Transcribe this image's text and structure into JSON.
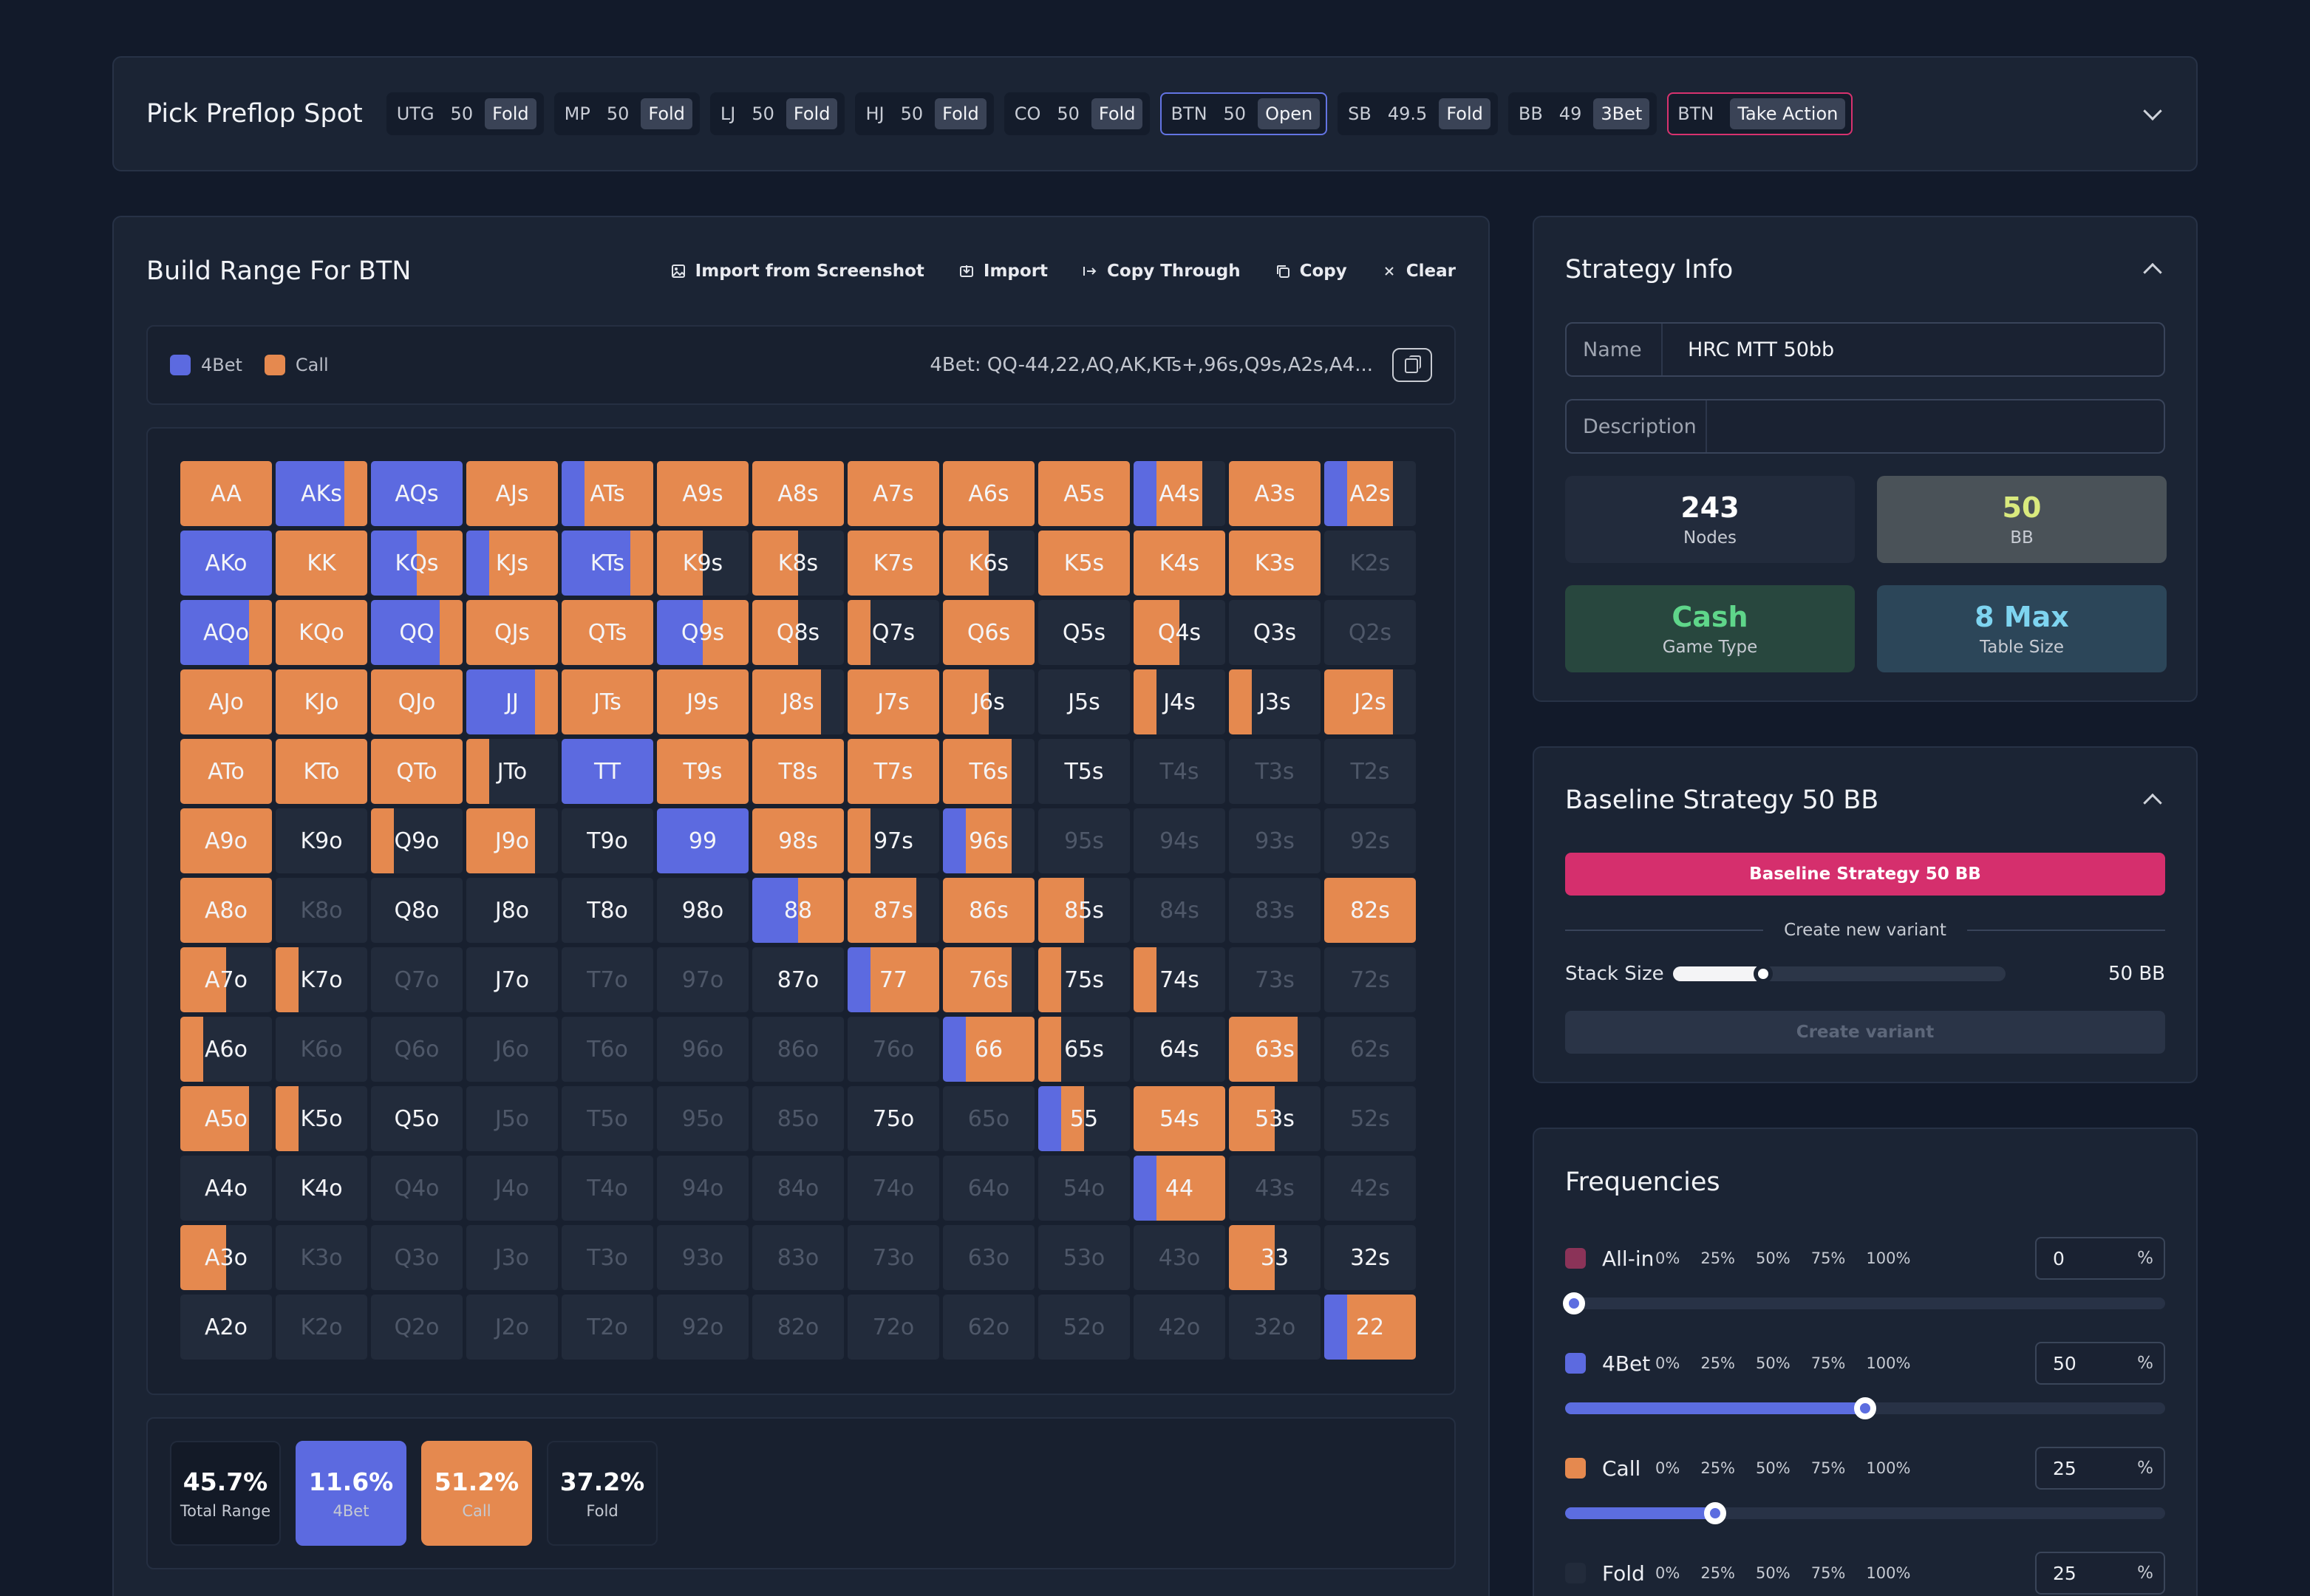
{
  "colors": {
    "fourbet": "#5c6ae0",
    "call": "#e5894f",
    "allin": "#8b3358",
    "fold": "#222b3b",
    "accent": "#d52f6d"
  },
  "spot": {
    "title": "Pick Preflop Spot",
    "chips": [
      {
        "pos": "UTG",
        "stack": "50",
        "action": "Fold"
      },
      {
        "pos": "MP",
        "stack": "50",
        "action": "Fold"
      },
      {
        "pos": "LJ",
        "stack": "50",
        "action": "Fold"
      },
      {
        "pos": "HJ",
        "stack": "50",
        "action": "Fold"
      },
      {
        "pos": "CO",
        "stack": "50",
        "action": "Fold"
      },
      {
        "pos": "BTN",
        "stack": "50",
        "action": "Open",
        "state": "current"
      },
      {
        "pos": "SB",
        "stack": "49.5",
        "action": "Fold"
      },
      {
        "pos": "BB",
        "stack": "49",
        "action": "3Bet"
      },
      {
        "pos": "BTN",
        "stack": "",
        "action": "Take Action",
        "state": "take"
      }
    ]
  },
  "range": {
    "title": "Build Range For BTN",
    "actions": [
      {
        "label": "Import from Screenshot",
        "icon": "image-icon"
      },
      {
        "label": "Import",
        "icon": "import-icon"
      },
      {
        "label": "Copy Through",
        "icon": "arrow-right-icon"
      },
      {
        "label": "Copy",
        "icon": "copy-icon"
      },
      {
        "label": "Clear",
        "icon": "close-icon"
      }
    ],
    "legend": [
      {
        "label": "4Bet",
        "color": "#5c6ae0"
      },
      {
        "label": "Call",
        "color": "#e5894f"
      }
    ],
    "range_string": "4Bet: QQ-44,22,AQ,AK,KTs+,96s,Q9s,A2s,A4...",
    "cells": [
      [
        "AA",
        0,
        1
      ],
      [
        "AKs",
        0.75,
        0.25
      ],
      [
        "AQs",
        1,
        0
      ],
      [
        "AJs",
        0,
        1
      ],
      [
        "ATs",
        0.25,
        0.75
      ],
      [
        "A9s",
        0,
        1
      ],
      [
        "A8s",
        0,
        1
      ],
      [
        "A7s",
        0,
        1
      ],
      [
        "A6s",
        0,
        1
      ],
      [
        "A5s",
        0,
        1
      ],
      [
        "A4s",
        0.25,
        0.5
      ],
      [
        "A3s",
        0,
        1
      ],
      [
        "A2s",
        0.25,
        0.5
      ],
      [
        "AKo",
        1,
        0
      ],
      [
        "KK",
        0,
        1
      ],
      [
        "KQs",
        0.5,
        0.5
      ],
      [
        "KJs",
        0.25,
        0.75
      ],
      [
        "KTs",
        0.75,
        0.25
      ],
      [
        "K9s",
        0,
        0.5
      ],
      [
        "K8s",
        0,
        0.5
      ],
      [
        "K7s",
        0,
        1
      ],
      [
        "K6s",
        0,
        0.5
      ],
      [
        "K5s",
        0,
        1
      ],
      [
        "K4s",
        0,
        1
      ],
      [
        "K3s",
        0,
        1
      ],
      [
        "K2s",
        0,
        0
      ],
      [
        "AQo",
        0.75,
        0.25
      ],
      [
        "KQo",
        0,
        1
      ],
      [
        "QQ",
        0.75,
        0.25
      ],
      [
        "QJs",
        0,
        1
      ],
      [
        "QTs",
        0,
        1
      ],
      [
        "Q9s",
        0.5,
        0.5
      ],
      [
        "Q8s",
        0,
        0.5
      ],
      [
        "Q7s",
        0,
        0.25
      ],
      [
        "Q6s",
        0,
        1
      ],
      [
        "Q5s",
        0,
        0
      ],
      [
        "Q4s",
        0,
        0.5
      ],
      [
        "Q3s",
        0,
        0
      ],
      [
        "Q2s",
        0,
        0
      ],
      [
        "AJo",
        0,
        1
      ],
      [
        "KJo",
        0,
        1
      ],
      [
        "QJo",
        0,
        1
      ],
      [
        "JJ",
        0.75,
        0.25
      ],
      [
        "JTs",
        0,
        1
      ],
      [
        "J9s",
        0,
        1
      ],
      [
        "J8s",
        0,
        0.75
      ],
      [
        "J7s",
        0,
        1
      ],
      [
        "J6s",
        0,
        0.5
      ],
      [
        "J5s",
        0,
        0
      ],
      [
        "J4s",
        0,
        0.25
      ],
      [
        "J3s",
        0,
        0.25
      ],
      [
        "J2s",
        0,
        0.75
      ],
      [
        "ATo",
        0,
        1
      ],
      [
        "KTo",
        0,
        1
      ],
      [
        "QTo",
        0,
        1
      ],
      [
        "JTo",
        0,
        0.25
      ],
      [
        "TT",
        1,
        0
      ],
      [
        "T9s",
        0,
        1
      ],
      [
        "T8s",
        0,
        1
      ],
      [
        "T7s",
        0,
        1
      ],
      [
        "T6s",
        0,
        0.75
      ],
      [
        "T5s",
        0,
        0
      ],
      [
        "T4s",
        0,
        0
      ],
      [
        "T3s",
        0,
        0
      ],
      [
        "T2s",
        0,
        0
      ],
      [
        "A9o",
        0,
        1
      ],
      [
        "K9o",
        0,
        0
      ],
      [
        "Q9o",
        0,
        0.25
      ],
      [
        "J9o",
        0,
        0.75
      ],
      [
        "T9o",
        0,
        0
      ],
      [
        "99",
        1,
        0
      ],
      [
        "98s",
        0,
        1
      ],
      [
        "97s",
        0,
        0.25
      ],
      [
        "96s",
        0.25,
        0.5
      ],
      [
        "95s",
        0,
        0
      ],
      [
        "94s",
        0,
        0
      ],
      [
        "93s",
        0,
        0
      ],
      [
        "92s",
        0,
        0
      ],
      [
        "A8o",
        0,
        1
      ],
      [
        "K8o",
        0,
        0
      ],
      [
        "Q8o",
        0,
        0
      ],
      [
        "J8o",
        0,
        0
      ],
      [
        "T8o",
        0,
        0
      ],
      [
        "98o",
        0,
        0
      ],
      [
        "88",
        0.5,
        0.5
      ],
      [
        "87s",
        0,
        0.75
      ],
      [
        "86s",
        0,
        1
      ],
      [
        "85s",
        0,
        0.5
      ],
      [
        "84s",
        0,
        0
      ],
      [
        "83s",
        0,
        0
      ],
      [
        "82s",
        0,
        1
      ],
      [
        "A7o",
        0,
        0.5
      ],
      [
        "K7o",
        0,
        0.25
      ],
      [
        "Q7o",
        0,
        0
      ],
      [
        "J7o",
        0,
        0
      ],
      [
        "T7o",
        0,
        0
      ],
      [
        "97o",
        0,
        0
      ],
      [
        "87o",
        0,
        0
      ],
      [
        "77",
        0.25,
        0.75
      ],
      [
        "76s",
        0,
        0.75
      ],
      [
        "75s",
        0,
        0.25
      ],
      [
        "74s",
        0,
        0.25
      ],
      [
        "73s",
        0,
        0
      ],
      [
        "72s",
        0,
        0
      ],
      [
        "A6o",
        0,
        0.25
      ],
      [
        "K6o",
        0,
        0
      ],
      [
        "Q6o",
        0,
        0
      ],
      [
        "J6o",
        0,
        0
      ],
      [
        "T6o",
        0,
        0
      ],
      [
        "96o",
        0,
        0
      ],
      [
        "86o",
        0,
        0
      ],
      [
        "76o",
        0,
        0
      ],
      [
        "66",
        0.25,
        0.75
      ],
      [
        "65s",
        0,
        0.25
      ],
      [
        "64s",
        0,
        0
      ],
      [
        "63s",
        0,
        0.75
      ],
      [
        "62s",
        0,
        0
      ],
      [
        "A5o",
        0,
        0.75
      ],
      [
        "K5o",
        0,
        0.25
      ],
      [
        "Q5o",
        0,
        0
      ],
      [
        "J5o",
        0,
        0
      ],
      [
        "T5o",
        0,
        0
      ],
      [
        "95o",
        0,
        0
      ],
      [
        "85o",
        0,
        0
      ],
      [
        "75o",
        0,
        0
      ],
      [
        "65o",
        0,
        0
      ],
      [
        "55",
        0.25,
        0.25
      ],
      [
        "54s",
        0,
        1
      ],
      [
        "53s",
        0,
        0.5
      ],
      [
        "52s",
        0,
        0
      ],
      [
        "A4o",
        0,
        0
      ],
      [
        "K4o",
        0,
        0
      ],
      [
        "Q4o",
        0,
        0
      ],
      [
        "J4o",
        0,
        0
      ],
      [
        "T4o",
        0,
        0
      ],
      [
        "94o",
        0,
        0
      ],
      [
        "84o",
        0,
        0
      ],
      [
        "74o",
        0,
        0
      ],
      [
        "64o",
        0,
        0
      ],
      [
        "54o",
        0,
        0
      ],
      [
        "44",
        0.25,
        0.75
      ],
      [
        "43s",
        0,
        0
      ],
      [
        "42s",
        0,
        0
      ],
      [
        "A3o",
        0,
        0.5
      ],
      [
        "K3o",
        0,
        0
      ],
      [
        "Q3o",
        0,
        0
      ],
      [
        "J3o",
        0,
        0
      ],
      [
        "T3o",
        0,
        0
      ],
      [
        "93o",
        0,
        0
      ],
      [
        "83o",
        0,
        0
      ],
      [
        "73o",
        0,
        0
      ],
      [
        "63o",
        0,
        0
      ],
      [
        "53o",
        0,
        0
      ],
      [
        "43o",
        0,
        0
      ],
      [
        "33",
        0,
        0.5
      ],
      [
        "32s",
        0,
        0
      ],
      [
        "A2o",
        0,
        0
      ],
      [
        "K2o",
        0,
        0
      ],
      [
        "Q2o",
        0,
        0
      ],
      [
        "J2o",
        0,
        0
      ],
      [
        "T2o",
        0,
        0
      ],
      [
        "92o",
        0,
        0
      ],
      [
        "82o",
        0,
        0
      ],
      [
        "72o",
        0,
        0
      ],
      [
        "62o",
        0,
        0
      ],
      [
        "52o",
        0,
        0
      ],
      [
        "42o",
        0,
        0
      ],
      [
        "32o",
        0,
        0
      ],
      [
        "22",
        0.25,
        0.75
      ]
    ],
    "dim_labels": [
      "K2s",
      "Q2s",
      "T4s",
      "T3s",
      "T2s",
      "95s",
      "94s",
      "93s",
      "92s",
      "K8o",
      "84s",
      "83s",
      "Q7o",
      "T7o",
      "97o",
      "73s",
      "72s",
      "K6o",
      "Q6o",
      "J6o",
      "T6o",
      "96o",
      "86o",
      "76o",
      "62s",
      "J5o",
      "T5o",
      "95o",
      "85o",
      "65o",
      "52s",
      "Q4o",
      "J4o",
      "T4o",
      "94o",
      "84o",
      "74o",
      "64o",
      "54o",
      "43s",
      "42s",
      "K3o",
      "Q3o",
      "J3o",
      "T3o",
      "93o",
      "83o",
      "73o",
      "63o",
      "53o",
      "43o",
      "K2o",
      "Q2o",
      "J2o",
      "T2o",
      "92o",
      "82o",
      "72o",
      "62o",
      "52o",
      "42o",
      "32o"
    ],
    "stats": [
      {
        "value": "45.7%",
        "label": "Total Range",
        "kind": "total"
      },
      {
        "value": "11.6%",
        "label": "4Bet",
        "kind": "fourbet"
      },
      {
        "value": "51.2%",
        "label": "Call",
        "kind": "call"
      },
      {
        "value": "37.2%",
        "label": "Fold",
        "kind": "fold"
      }
    ]
  },
  "strategy": {
    "title": "Strategy Info",
    "name_label": "Name",
    "name_value": "HRC MTT 50bb",
    "desc_label": "Description",
    "desc_value": "",
    "tiles": [
      {
        "value": "243",
        "label": "Nodes",
        "bg": "#222b3c",
        "color": "#ffffff"
      },
      {
        "value": "50",
        "label": "BB",
        "bg": "#4a5258",
        "color": "#d9ea7e"
      },
      {
        "value": "Cash",
        "label": "Game Type",
        "bg": "#28473e",
        "color": "#5fd68a"
      },
      {
        "value": "8 Max",
        "label": "Table Size",
        "bg": "#2c4659",
        "color": "#7ed4f0"
      }
    ]
  },
  "baseline": {
    "title": "Baseline Strategy 50 BB",
    "button": "Baseline Strategy 50 BB",
    "divider": "Create new variant",
    "stack_label": "Stack Size",
    "stack_value": "50 BB",
    "stack_fraction": 0.27,
    "create_button": "Create variant"
  },
  "frequencies": {
    "title": "Frequencies",
    "ticks": [
      "0%",
      "25%",
      "50%",
      "75%",
      "100%"
    ],
    "rows": [
      {
        "name": "All-in",
        "color": "#8b3358",
        "value": "0",
        "unit": "%",
        "pct": 0
      },
      {
        "name": "4Bet",
        "color": "#5c6ae0",
        "value": "50",
        "unit": "%",
        "pct": 50
      },
      {
        "name": "Call",
        "color": "#e5894f",
        "value": "25",
        "unit": "%",
        "pct": 25
      },
      {
        "name": "Fold",
        "color": "#222b3b",
        "value": "25",
        "unit": "%",
        "pct": 25
      }
    ]
  }
}
